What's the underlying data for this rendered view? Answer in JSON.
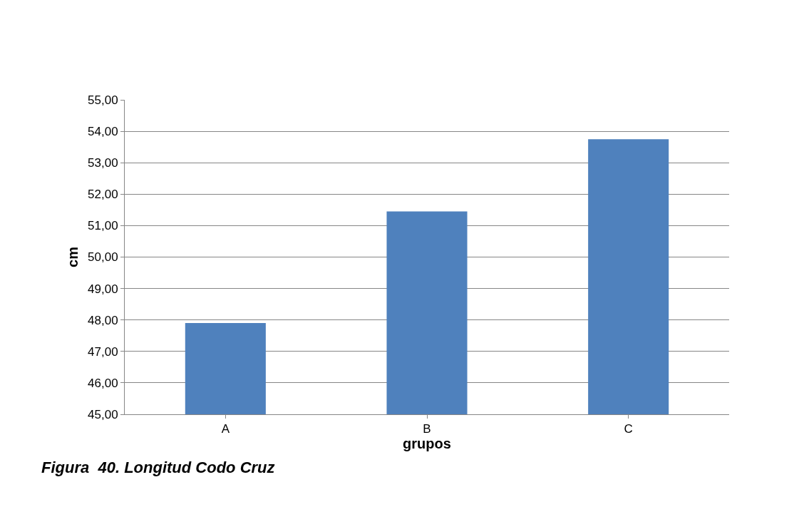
{
  "chart_data": {
    "type": "bar",
    "xlabel": "grupos",
    "ylabel": "cm",
    "categories": [
      "A",
      "B",
      "C"
    ],
    "values": [
      47.9,
      51.45,
      53.75
    ],
    "color": "#4f81bd",
    "ylim": [
      45,
      55
    ],
    "yticks": [
      {
        "value": 45,
        "label": "45,00"
      },
      {
        "value": 46,
        "label": "46,00"
      },
      {
        "value": 47,
        "label": "47,00"
      },
      {
        "value": 48,
        "label": "48,00"
      },
      {
        "value": 49,
        "label": "49,00"
      },
      {
        "value": 50,
        "label": "50,00"
      },
      {
        "value": 51,
        "label": "51,00"
      },
      {
        "value": 52,
        "label": "52,00"
      },
      {
        "value": 53,
        "label": "53,00"
      },
      {
        "value": 54,
        "label": "54,00"
      },
      {
        "value": 55,
        "label": "55,00"
      }
    ],
    "grid": "y",
    "annotations": [
      "Figura  40. Longitud Codo Cruz"
    ]
  }
}
